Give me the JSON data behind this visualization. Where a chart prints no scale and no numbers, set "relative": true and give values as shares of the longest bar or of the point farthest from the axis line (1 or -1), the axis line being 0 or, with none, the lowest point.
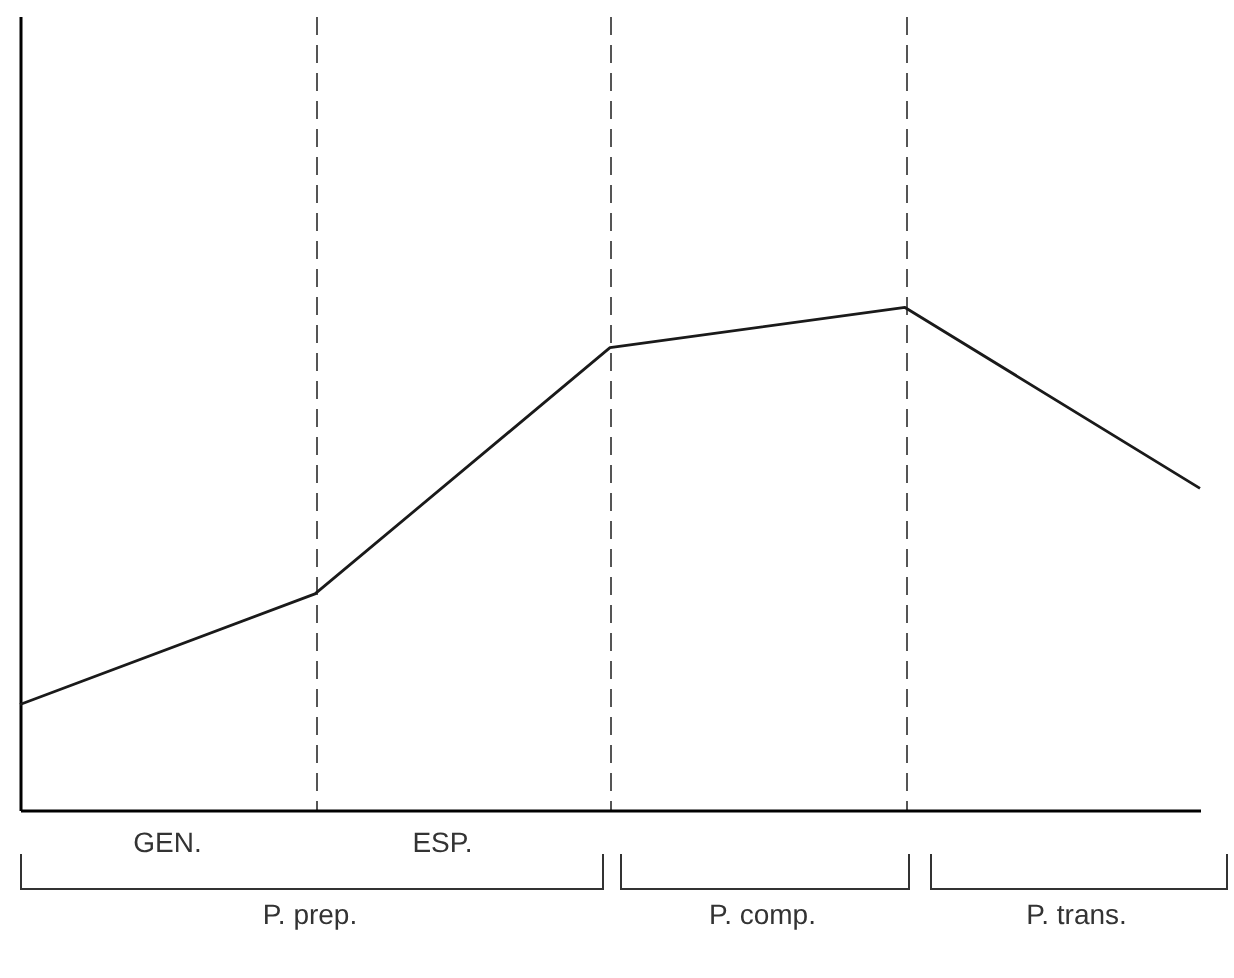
{
  "chart_data": {
    "type": "line",
    "relative": true,
    "grid": "x",
    "categories": [
      null,
      null,
      null,
      null,
      null
    ],
    "series": [
      {
        "color": "#1a1a1a",
        "values": [
          0.21,
          0.43,
          0.92,
          1,
          0.64
        ]
      }
    ],
    "line_style": "solid",
    "annotations": [
      "GEN.",
      "ESP.",
      "P. prep.",
      "P. comp.",
      "P. trans."
    ]
  }
}
